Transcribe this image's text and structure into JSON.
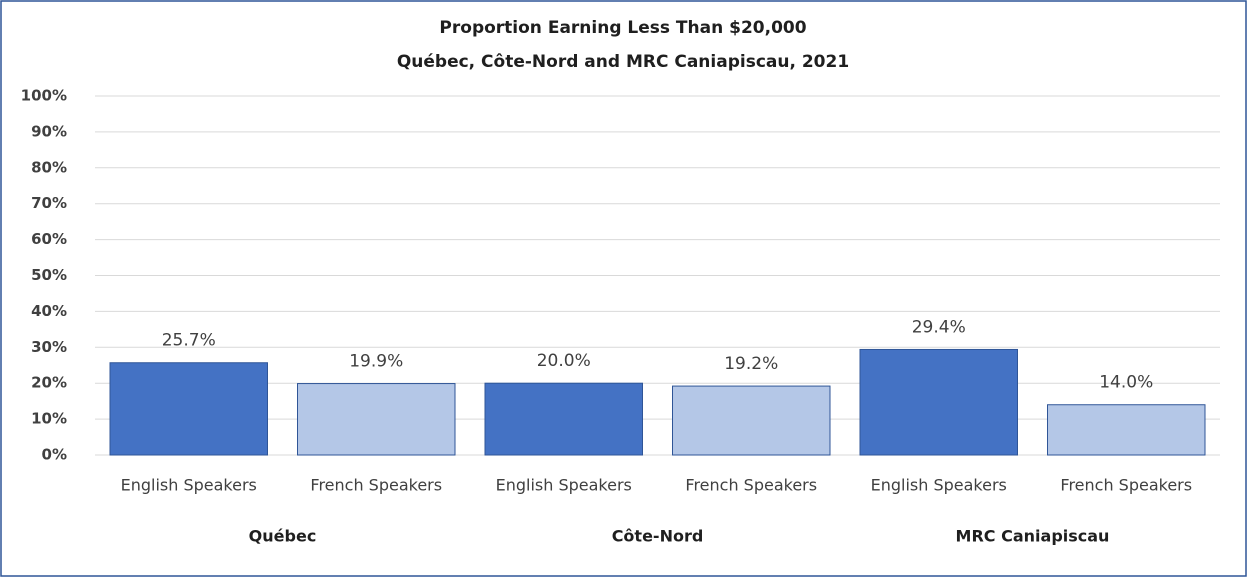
{
  "chart_data": {
    "type": "bar",
    "title": "Proportion Earning  Less Than  $20,000",
    "subtitle": "Québec, Côte-Nord and MRC  Caniapiscau,  2021",
    "categories": [
      "English Speakers",
      "French Speakers",
      "English Speakers",
      "French Speakers",
      "English Speakers",
      "French Speakers"
    ],
    "groups": [
      "Québec",
      "Côte-Nord",
      "MRC Caniapiscau"
    ],
    "values": [
      25.7,
      19.9,
      20.0,
      19.2,
      29.4,
      14.0
    ],
    "value_labels": [
      "25.7%",
      "19.9%",
      "20.0%",
      "19.2%",
      "29.4%",
      "14.0%"
    ],
    "colors": [
      "#4472c4",
      "#b4c7e7",
      "#4472c4",
      "#b4c7e7",
      "#4472c4",
      "#b4c7e7"
    ],
    "ylim": [
      0,
      100
    ],
    "yticks": [
      {
        "value": 0,
        "label": "0%"
      },
      {
        "value": 10,
        "label": "10%"
      },
      {
        "value": 20,
        "label": "20%"
      },
      {
        "value": 30,
        "label": "30%"
      },
      {
        "value": 40,
        "label": "40%"
      },
      {
        "value": 50,
        "label": "50%"
      },
      {
        "value": 60,
        "label": "60%"
      },
      {
        "value": 70,
        "label": "70%"
      },
      {
        "value": 80,
        "label": "80%"
      },
      {
        "value": 90,
        "label": "90%"
      },
      {
        "value": 100,
        "label": "100%"
      }
    ],
    "grid": true
  }
}
